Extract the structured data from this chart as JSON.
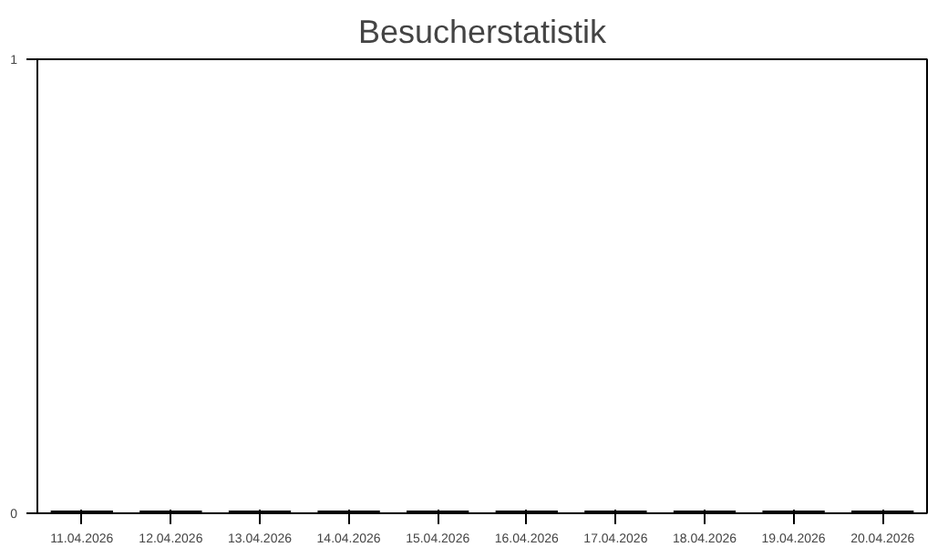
{
  "chart_data": {
    "type": "bar",
    "title": "Besucherstatistik",
    "categories": [
      "11.04.2026",
      "12.04.2026",
      "13.04.2026",
      "14.04.2026",
      "15.04.2026",
      "16.04.2026",
      "17.04.2026",
      "18.04.2026",
      "19.04.2026",
      "20.04.2026"
    ],
    "values": [
      0,
      0,
      0,
      0,
      0,
      0,
      0,
      0,
      0,
      0
    ],
    "color": "#000000",
    "ylim": [
      0,
      1
    ],
    "yticks": [
      0,
      1
    ],
    "grid": false
  }
}
